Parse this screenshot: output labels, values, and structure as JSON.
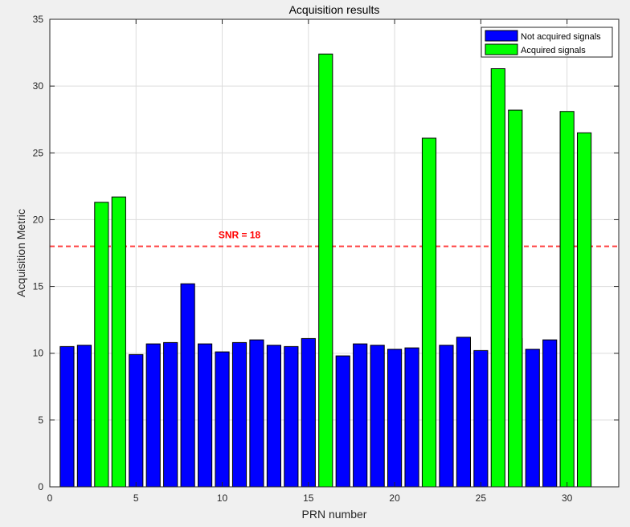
{
  "chart_data": {
    "type": "bar",
    "title": "Acquisition results",
    "xlabel": "PRN number",
    "ylabel": "Acquisition Metric",
    "xlim": [
      0,
      33
    ],
    "ylim": [
      0,
      35
    ],
    "xticks": [
      0,
      5,
      10,
      15,
      20,
      25,
      30
    ],
    "yticks": [
      0,
      5,
      10,
      15,
      20,
      25,
      30,
      35
    ],
    "grid": true,
    "legend_position": "top-right",
    "series": [
      {
        "name": "Not acquired signals",
        "color": "#0000ff",
        "x": [
          1,
          2,
          5,
          6,
          7,
          8,
          9,
          10,
          11,
          12,
          13,
          14,
          15,
          17,
          18,
          19,
          20,
          21,
          23,
          24,
          25,
          27,
          28,
          29
        ],
        "values": [
          10.5,
          10.6,
          9.9,
          10.7,
          10.8,
          15.2,
          10.7,
          10.1,
          10.8,
          11.0,
          10.6,
          10.5,
          11.1,
          9.8,
          10.7,
          10.6,
          10.3,
          10.4,
          10.6,
          11.2,
          10.2,
          11.1,
          10.3,
          11.0
        ]
      },
      {
        "name": "Acquired signals",
        "color": "#00ff00",
        "x": [
          3,
          4,
          16,
          22,
          26,
          27,
          30,
          31
        ],
        "values": [
          21.3,
          21.7,
          32.4,
          26.1,
          31.3,
          28.2,
          28.1,
          26.5
        ]
      }
    ],
    "threshold": {
      "value": 18,
      "label": "SNR = 18",
      "color": "#ff0000"
    }
  }
}
